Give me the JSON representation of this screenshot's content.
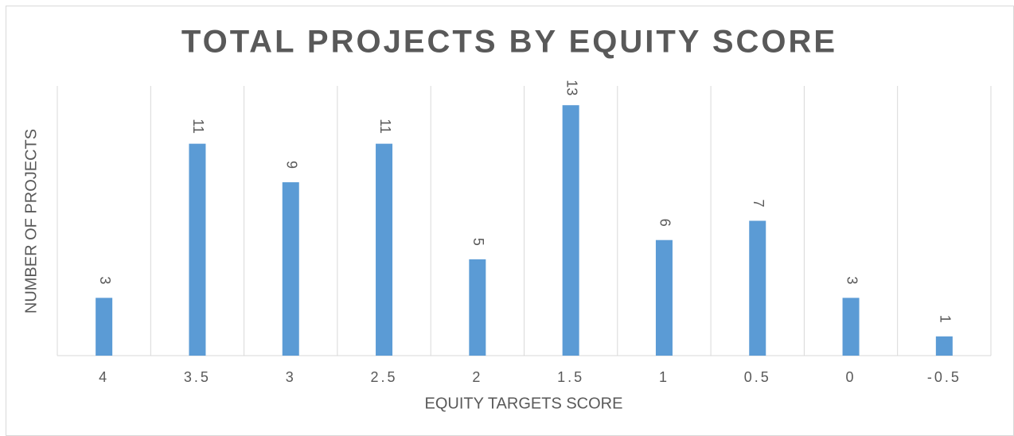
{
  "chart_data": {
    "type": "bar",
    "title": "TOTAL PROJECTS BY EQUITY SCORE",
    "x_label": "EQUITY TARGETS SCORE",
    "y_label": "NUMBER OF PROJECTS",
    "categories": [
      "4",
      "3.5",
      "3",
      "2.5",
      "2",
      "1.5",
      "1",
      "0.5",
      "0",
      "-0.5"
    ],
    "values": [
      3,
      11,
      9,
      11,
      5,
      13,
      6,
      7,
      3,
      1
    ],
    "color": "#5b9bd5",
    "ylim": [
      0,
      14
    ],
    "grid": true
  }
}
